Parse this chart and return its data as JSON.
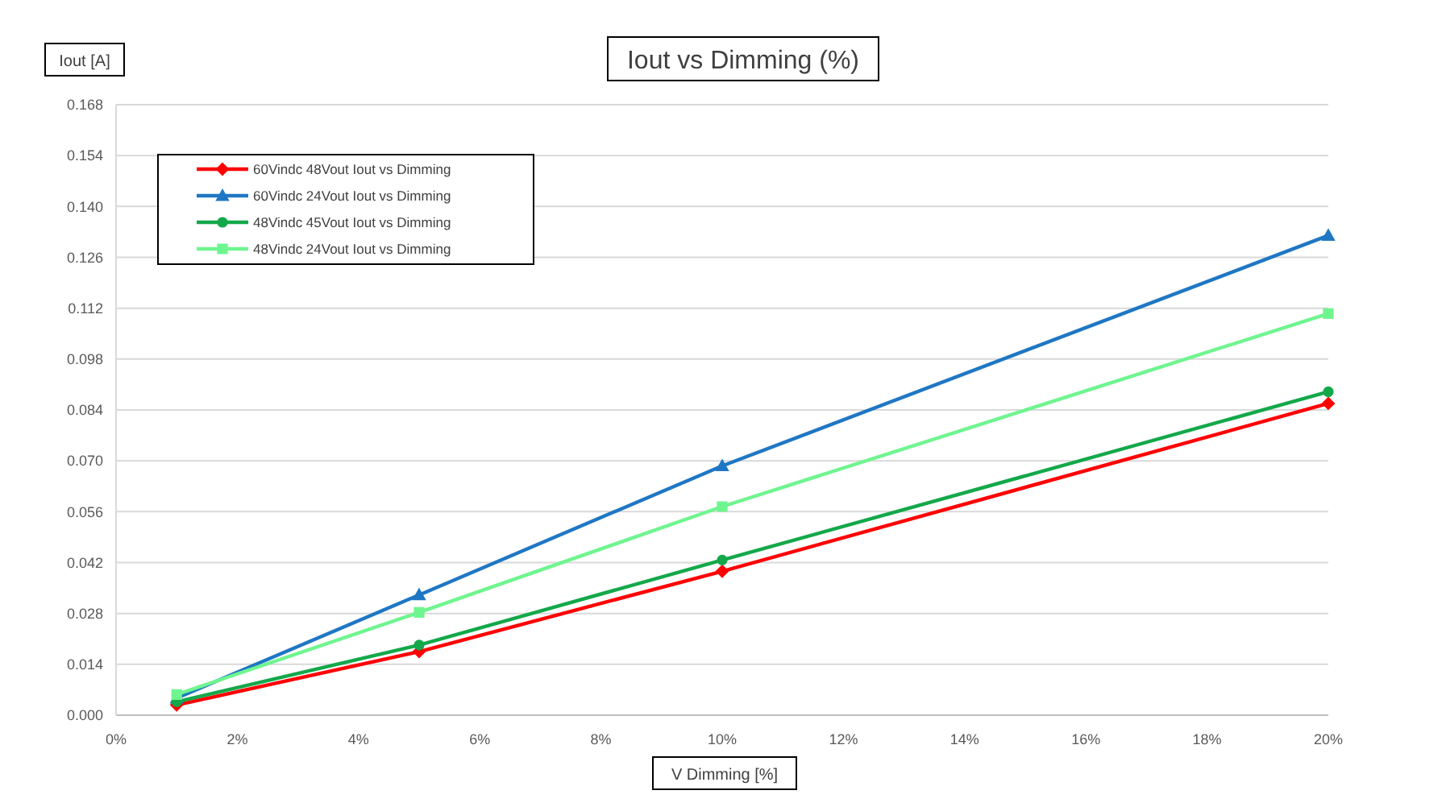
{
  "chart_data": {
    "type": "line",
    "title": "Iout vs Dimming (%)",
    "xlabel": "V Dimming [%]",
    "ylabel": "Iout [A]",
    "x": [
      1,
      5,
      10,
      20
    ],
    "xlim": [
      0,
      20
    ],
    "xticks": [
      {
        "value": 0,
        "label": "0%"
      },
      {
        "value": 2,
        "label": "2%"
      },
      {
        "value": 4,
        "label": "4%"
      },
      {
        "value": 6,
        "label": "6%"
      },
      {
        "value": 8,
        "label": "8%"
      },
      {
        "value": 10,
        "label": "10%"
      },
      {
        "value": 12,
        "label": "12%"
      },
      {
        "value": 14,
        "label": "14%"
      },
      {
        "value": 16,
        "label": "16%"
      },
      {
        "value": 18,
        "label": "18%"
      },
      {
        "value": 20,
        "label": "20%"
      }
    ],
    "ylim": [
      0,
      0.168
    ],
    "yticks": [
      {
        "value": 0,
        "label": "0.000"
      },
      {
        "value": 0.014,
        "label": "0.014"
      },
      {
        "value": 0.028,
        "label": "0.028"
      },
      {
        "value": 0.042,
        "label": "0.042"
      },
      {
        "value": 0.056,
        "label": "0.056"
      },
      {
        "value": 0.07,
        "label": "0.070"
      },
      {
        "value": 0.084,
        "label": "0.084"
      },
      {
        "value": 0.098,
        "label": "0.098"
      },
      {
        "value": 0.112,
        "label": "0.112"
      },
      {
        "value": 0.126,
        "label": "0.126"
      },
      {
        "value": 0.14,
        "label": "0.140"
      },
      {
        "value": 0.154,
        "label": "0.154"
      },
      {
        "value": 0.168,
        "label": "0.168"
      }
    ],
    "grid": "y",
    "legend": "top left",
    "series": [
      {
        "name": "60Vindc 48Vout Iout vs Dimming",
        "color": "#ff0000",
        "marker": "diamond",
        "values": [
          0.0028,
          0.0175,
          0.0396,
          0.0858
        ]
      },
      {
        "name": "60Vindc 24Vout Iout vs Dimming",
        "color": "#1f77c4",
        "marker": "triangle",
        "values": [
          0.0047,
          0.0331,
          0.0686,
          0.132
        ]
      },
      {
        "name": "48Vindc 45Vout Iout vs Dimming",
        "color": "#13a84a",
        "marker": "circle",
        "values": [
          0.0037,
          0.0193,
          0.0427,
          0.089
        ]
      },
      {
        "name": "48Vindc 24Vout Iout vs Dimming",
        "color": "#6ff58f",
        "marker": "square",
        "values": [
          0.0057,
          0.0283,
          0.0574,
          0.1105
        ]
      }
    ]
  }
}
